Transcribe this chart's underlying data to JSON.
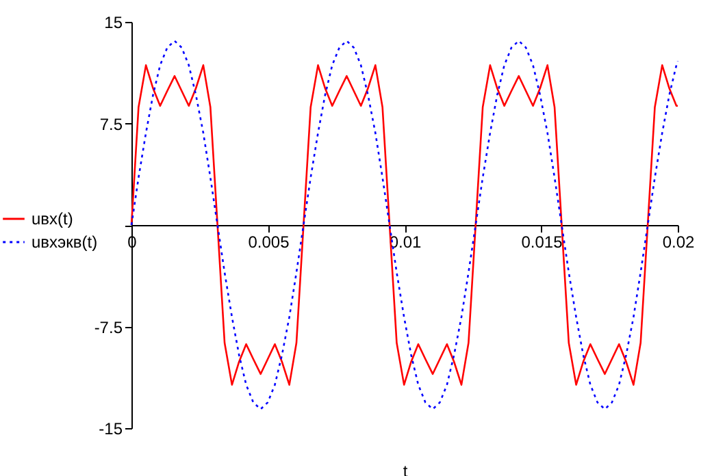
{
  "chart_data": {
    "type": "line",
    "xlabel": "t",
    "legend": "left",
    "xlim": [
      0,
      0.02
    ],
    "ylim": [
      -15,
      15
    ],
    "xticks": [
      0,
      0.005,
      0.01,
      0.015,
      0.02
    ],
    "yticks": [
      -15,
      -7.5,
      {
        "value": 0,
        "label": null
      },
      7.5,
      15
    ],
    "x": [
      0,
      0.00026,
      0.00053,
      0.00079,
      0.00105,
      0.00131,
      0.00158,
      0.00184,
      0.0021,
      0.00236,
      0.00263,
      0.00289,
      0.00315,
      0.00341,
      0.00368,
      0.00394,
      0.0042,
      0.00446,
      0.00473,
      0.00499,
      0.00525,
      0.00551,
      0.00578,
      0.00604,
      0.0063,
      0.00656,
      0.00683,
      0.00709,
      0.00735,
      0.00761,
      0.00788,
      0.00814,
      0.0084,
      0.00866,
      0.00893,
      0.00919,
      0.00945,
      0.00971,
      0.00998,
      0.01024,
      0.0105,
      0.01076,
      0.01103,
      0.01129,
      0.01155,
      0.01181,
      0.01208,
      0.01234,
      0.0126,
      0.01286,
      0.01313,
      0.01339,
      0.01365,
      0.01391,
      0.01418,
      0.01444,
      0.0147,
      0.01496,
      0.01523,
      0.01549,
      0.01575,
      0.01601,
      0.01628,
      0.01654,
      0.0168,
      0.01706,
      0.01733,
      0.01759,
      0.01785,
      0.01811,
      0.01838,
      0.01864,
      0.0189,
      0.01916,
      0.01943,
      0.01969,
      0.01995,
      0.02
    ],
    "series": [
      {
        "name": "uвх(t)",
        "color": "#ff0000",
        "line_style": "solid",
        "values": [
          0,
          8.7,
          11.8,
          10.1,
          8.8,
          9.9,
          11,
          9.9,
          8.8,
          10.1,
          11.8,
          8.7,
          0,
          -8.7,
          -11.8,
          -10.1,
          -8.8,
          -9.9,
          -11,
          -9.9,
          -8.8,
          -10.1,
          -11.8,
          -8.7,
          0,
          8.7,
          11.8,
          10.1,
          8.8,
          9.9,
          11,
          9.9,
          8.8,
          10.1,
          11.8,
          8.7,
          0,
          -8.7,
          -11.8,
          -10.1,
          -8.8,
          -9.9,
          -11,
          -9.9,
          -8.8,
          -10.1,
          -11.8,
          -8.7,
          0,
          8.7,
          11.8,
          10.1,
          8.8,
          9.9,
          11,
          9.9,
          8.8,
          10.1,
          11.8,
          8.7,
          0,
          -8.7,
          -11.8,
          -10.1,
          -8.8,
          -9.9,
          -11,
          -9.9,
          -8.8,
          -10.1,
          -11.8,
          -8.7,
          0,
          8.7,
          11.8,
          10.1,
          8.8,
          8.8
        ]
      },
      {
        "name": "uвхэкв(t)",
        "color": "#0000ff",
        "line_style": "dotted",
        "values": [
          0,
          3.5,
          6.8,
          9.6,
          11.8,
          13.1,
          13.6,
          13.1,
          11.8,
          9.6,
          6.8,
          3.5,
          0,
          -3.5,
          -6.8,
          -9.6,
          -11.8,
          -13.1,
          -13.6,
          -13.1,
          -11.8,
          -9.6,
          -6.8,
          -3.5,
          0,
          3.5,
          6.8,
          9.6,
          11.8,
          13.1,
          13.6,
          13.1,
          11.8,
          9.6,
          6.8,
          3.5,
          0,
          -3.5,
          -6.8,
          -9.6,
          -11.8,
          -13.1,
          -13.6,
          -13.1,
          -11.8,
          -9.6,
          -6.8,
          -3.5,
          0,
          3.5,
          6.8,
          9.6,
          11.8,
          13.1,
          13.6,
          13.1,
          11.8,
          9.6,
          6.8,
          3.5,
          0,
          -3.5,
          -6.8,
          -9.6,
          -11.8,
          -13.1,
          -13.6,
          -13.1,
          -11.8,
          -9.6,
          -6.8,
          -3.5,
          0,
          3.5,
          6.8,
          9.6,
          11.8,
          12.1
        ]
      }
    ]
  }
}
